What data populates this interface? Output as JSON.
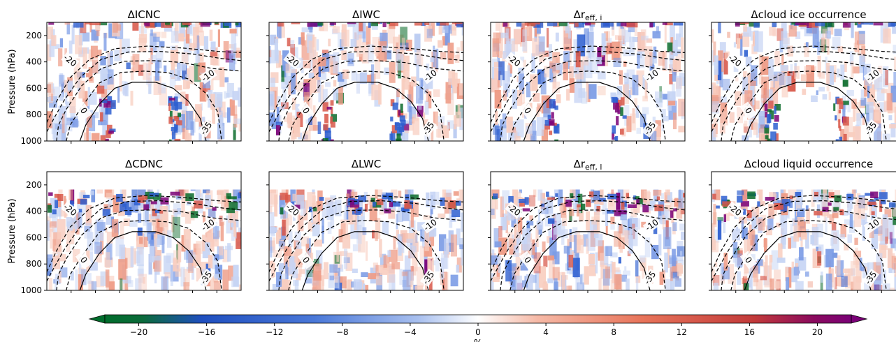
{
  "chart_data": {
    "type": "heatmap",
    "ylabel": "Pressure (hPa)",
    "y_ticks": [
      200,
      400,
      600,
      800,
      1000
    ],
    "ylim": [
      1000,
      100
    ],
    "colorbar": {
      "label": "%",
      "ticks": [
        "−20",
        "−16",
        "−12",
        "−8",
        "−4",
        "0",
        "4",
        "8",
        "12",
        "16",
        "20"
      ],
      "range": [
        -22,
        22
      ],
      "extend": "both",
      "colors": [
        "#006d2c",
        "#1f4fbf",
        "#5a85e0",
        "#a9c0ef",
        "#ffffff",
        "#f6b9a6",
        "#e8745a",
        "#c23a3a",
        "#7a0177"
      ]
    },
    "isotherm_labels": [
      "-35",
      "-20",
      "-10",
      "0"
    ],
    "panels": [
      {
        "title_main": "ΔICNC",
        "title_sub": "",
        "liquid": false,
        "icemask": true
      },
      {
        "title_main": "ΔIWC",
        "title_sub": "",
        "liquid": false,
        "icemask": true
      },
      {
        "title_main": "Δr",
        "title_sub": "eff, i",
        "liquid": false,
        "icemask": true
      },
      {
        "title_main": "Δcloud ice occurrence",
        "title_sub": "",
        "liquid": false,
        "icemask": true
      },
      {
        "title_main": "ΔCDNC",
        "title_sub": "",
        "liquid": true,
        "icemask": false
      },
      {
        "title_main": "ΔLWC",
        "title_sub": "",
        "liquid": true,
        "icemask": false
      },
      {
        "title_main": "Δr",
        "title_sub": "eff, l",
        "liquid": true,
        "icemask": false
      },
      {
        "title_main": "Δcloud liquid occurrence",
        "title_sub": "",
        "liquid": true,
        "icemask": false
      }
    ]
  }
}
